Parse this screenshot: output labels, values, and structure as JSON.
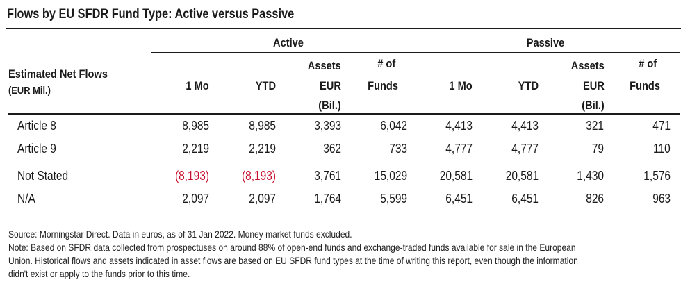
{
  "title": "Flows by EU SFDR Fund Type: Active versus Passive",
  "groups": {
    "active": "Active",
    "passive": "Passive"
  },
  "row_header": {
    "line1": "Estimated Net Flows",
    "line2": "(EUR Mil.)"
  },
  "columns": {
    "one_mo": "1 Mo",
    "ytd": "YTD",
    "assets_l1": "Assets",
    "assets_l2": "EUR",
    "assets_l3": "(Bil.)",
    "funds_l1": "# of",
    "funds_l2": "Funds"
  },
  "colors": {
    "negative": "#c8102e",
    "text": "#1a1a1a"
  },
  "rows": [
    {
      "label": "Article 8",
      "active": [
        "8,985",
        "8,985",
        "3,393",
        "6,042"
      ],
      "passive": [
        "4,413",
        "4,413",
        "321",
        "471"
      ]
    },
    {
      "label": "Article 9",
      "active": [
        "2,219",
        "2,219",
        "362",
        "733"
      ],
      "passive": [
        "4,777",
        "4,777",
        "79",
        "110"
      ]
    },
    {
      "label": "Not Stated",
      "active": [
        "(8,193)",
        "(8,193)",
        "3,761",
        "15,029"
      ],
      "passive": [
        "20,581",
        "20,581",
        "1,430",
        "1,576"
      ]
    },
    {
      "label": "N/A",
      "active": [
        "2,097",
        "2,097",
        "1,764",
        "5,599"
      ],
      "passive": [
        "6,451",
        "6,451",
        "826",
        "963"
      ]
    }
  ],
  "footnotes": [
    "Source: Morningstar Direct. Data in euros, as of 31 Jan 2022. Money market funds excluded.",
    "Note: Based on SFDR data collected from prospectuses on around 88% of open-end funds and exchange-traded funds available for sale in the European",
    "Union. Historical flows and assets indicated in asset flows are based on EU SFDR fund types at the time of writing this report, even though the information",
    "didn't exist or apply to the funds prior to this time."
  ]
}
